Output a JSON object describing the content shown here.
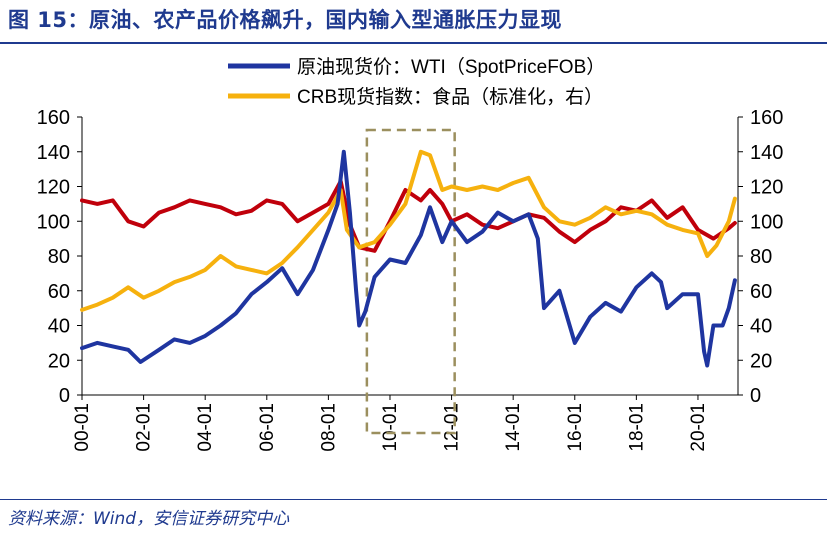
{
  "header": {
    "title": "图 15：原油、农产品价格飙升，国内输入型通胀压力显现"
  },
  "footer": {
    "source": "资料来源：Wind，安信证券研究中心"
  },
  "chart_data": {
    "type": "line",
    "xlabel": "",
    "ylabel": "",
    "x_ticks": [
      "00-01",
      "02-01",
      "04-01",
      "06-01",
      "08-01",
      "10-01",
      "12-01",
      "14-01",
      "16-01",
      "18-01",
      "20-01"
    ],
    "x_range": [
      2000.0,
      2021.3
    ],
    "ylim_left": [
      0,
      160
    ],
    "ylim_right": [
      0,
      160
    ],
    "y_ticks": [
      0,
      20,
      40,
      60,
      80,
      100,
      120,
      140,
      160
    ],
    "grid": false,
    "legend": "top-center",
    "highlight_box": {
      "x_start": 2009.25,
      "x_end": 2012.1,
      "style": "dashed",
      "color": "#9b8f5e"
    },
    "series": [
      {
        "name": "原油现货价：WTI（SpotPriceFOB）",
        "axis": "left",
        "color": "#1f35a0",
        "x": [
          2000.0,
          2000.5,
          2001.0,
          2001.5,
          2001.9,
          2002.5,
          2003.0,
          2003.5,
          2004.0,
          2004.5,
          2005.0,
          2005.5,
          2006.0,
          2006.5,
          2007.0,
          2007.5,
          2008.0,
          2008.3,
          2008.5,
          2008.7,
          2008.9,
          2009.0,
          2009.2,
          2009.5,
          2010.0,
          2010.5,
          2011.0,
          2011.3,
          2011.7,
          2012.0,
          2012.5,
          2013.0,
          2013.5,
          2014.0,
          2014.5,
          2014.8,
          2015.0,
          2015.5,
          2016.0,
          2016.5,
          2017.0,
          2017.5,
          2018.0,
          2018.5,
          2018.8,
          2019.0,
          2019.5,
          2020.0,
          2020.2,
          2020.3,
          2020.5,
          2020.8,
          2021.0,
          2021.2
        ],
        "values": [
          27,
          30,
          28,
          26,
          19,
          26,
          32,
          30,
          34,
          40,
          47,
          58,
          65,
          73,
          58,
          72,
          95,
          110,
          140,
          105,
          60,
          40,
          48,
          68,
          78,
          76,
          92,
          108,
          88,
          100,
          88,
          94,
          105,
          100,
          104,
          90,
          50,
          60,
          30,
          45,
          53,
          48,
          62,
          70,
          65,
          50,
          58,
          58,
          25,
          17,
          40,
          40,
          50,
          66
        ]
      },
      {
        "name": "CRB现货指数：食品（标准化，右）",
        "axis": "right",
        "color": "#f6b10e",
        "x": [
          2000.0,
          2000.5,
          2001.0,
          2001.5,
          2002.0,
          2002.5,
          2003.0,
          2003.5,
          2004.0,
          2004.5,
          2005.0,
          2005.5,
          2006.0,
          2006.5,
          2007.0,
          2007.5,
          2008.0,
          2008.4,
          2008.6,
          2009.0,
          2009.5,
          2010.0,
          2010.5,
          2011.0,
          2011.3,
          2011.7,
          2012.0,
          2012.5,
          2013.0,
          2013.5,
          2014.0,
          2014.5,
          2015.0,
          2015.5,
          2016.0,
          2016.5,
          2017.0,
          2017.5,
          2018.0,
          2018.5,
          2019.0,
          2019.5,
          2020.0,
          2020.3,
          2020.6,
          2021.0,
          2021.2
        ],
        "values": [
          49,
          52,
          56,
          62,
          56,
          60,
          65,
          68,
          72,
          80,
          74,
          72,
          70,
          76,
          85,
          95,
          105,
          118,
          95,
          85,
          88,
          98,
          110,
          140,
          138,
          118,
          120,
          118,
          120,
          118,
          122,
          125,
          108,
          100,
          98,
          102,
          108,
          104,
          106,
          104,
          98,
          95,
          93,
          80,
          86,
          100,
          113
        ]
      },
      {
        "name": "",
        "axis": "left",
        "color": "#c0000b",
        "x": [
          2000.0,
          2000.5,
          2001.0,
          2001.5,
          2002.0,
          2002.5,
          2003.0,
          2003.5,
          2004.0,
          2004.5,
          2005.0,
          2005.5,
          2006.0,
          2006.5,
          2007.0,
          2007.5,
          2008.0,
          2008.4,
          2008.7,
          2009.0,
          2009.5,
          2010.0,
          2010.5,
          2011.0,
          2011.3,
          2011.7,
          2012.0,
          2012.5,
          2013.0,
          2013.5,
          2014.0,
          2014.5,
          2015.0,
          2015.5,
          2016.0,
          2016.5,
          2017.0,
          2017.5,
          2018.0,
          2018.5,
          2019.0,
          2019.5,
          2020.0,
          2020.5,
          2021.0,
          2021.2
        ],
        "values": [
          112,
          110,
          112,
          100,
          97,
          105,
          108,
          112,
          110,
          108,
          104,
          106,
          112,
          110,
          100,
          105,
          110,
          123,
          98,
          85,
          83,
          100,
          118,
          112,
          118,
          110,
          100,
          104,
          98,
          96,
          100,
          104,
          102,
          94,
          88,
          95,
          100,
          108,
          106,
          112,
          102,
          108,
          95,
          90,
          96,
          99
        ]
      }
    ]
  }
}
